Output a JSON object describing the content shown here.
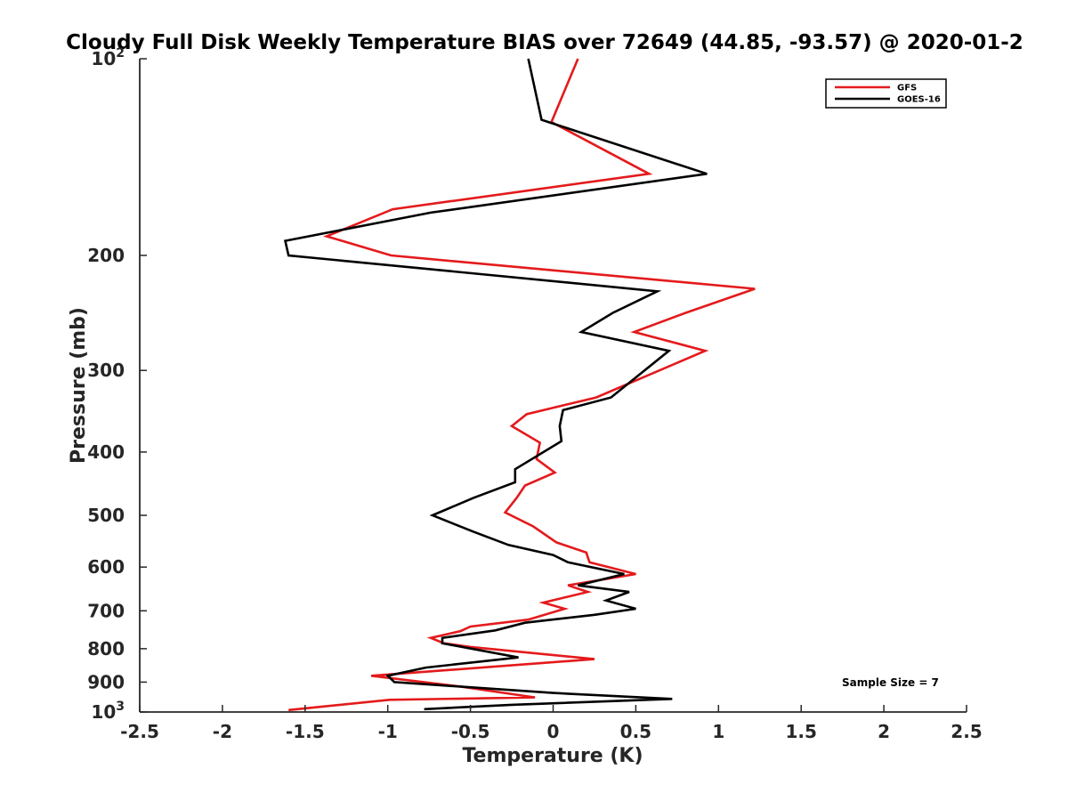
{
  "chart_data": {
    "type": "line",
    "title": "Cloudy Full Disk Weekly Temperature BIAS over 72649 (44.85, -93.57) @ 2020-01-2",
    "xlabel": "Temperature (K)",
    "ylabel": "Pressure (mb)",
    "xlim": [
      -2.5,
      2.5
    ],
    "ylim": [
      100,
      1000
    ],
    "y_scale": "log",
    "y_reversed": true,
    "x_ticks": [
      "-2.5",
      "-2",
      "-1.5",
      "-1",
      "-0.5",
      "0",
      "0.5",
      "1",
      "1.5",
      "2",
      "2.5"
    ],
    "y_ticks": [
      {
        "value": 100,
        "base": "10",
        "exp": "2"
      },
      {
        "value": 200,
        "label": "200"
      },
      {
        "value": 300,
        "label": "300"
      },
      {
        "value": 400,
        "label": "400"
      },
      {
        "value": 500,
        "label": "500"
      },
      {
        "value": 600,
        "label": "600"
      },
      {
        "value": 700,
        "label": "700"
      },
      {
        "value": 800,
        "label": "800"
      },
      {
        "value": 900,
        "label": "900"
      },
      {
        "value": 1000,
        "base": "10",
        "exp": "3"
      }
    ],
    "legend_position": "top-right",
    "annotation": "Sample Size = 7",
    "series": [
      {
        "name": "GFS",
        "color": "#e41a1c",
        "points": [
          [
            0.15,
            100
          ],
          [
            -0.01,
            125
          ],
          [
            0.58,
            150
          ],
          [
            -0.97,
            170
          ],
          [
            -1.37,
            187
          ],
          [
            -0.98,
            200
          ],
          [
            1.22,
            225
          ],
          [
            0.8,
            245
          ],
          [
            0.49,
            262
          ],
          [
            0.92,
            280
          ],
          [
            0.26,
            330
          ],
          [
            -0.16,
            350
          ],
          [
            -0.25,
            365
          ],
          [
            -0.08,
            387
          ],
          [
            -0.1,
            410
          ],
          [
            0.01,
            430
          ],
          [
            -0.17,
            450
          ],
          [
            -0.22,
            470
          ],
          [
            -0.29,
            495
          ],
          [
            -0.12,
            520
          ],
          [
            0.02,
            550
          ],
          [
            0.2,
            570
          ],
          [
            0.22,
            590
          ],
          [
            0.5,
            615
          ],
          [
            0.09,
            640
          ],
          [
            0.21,
            655
          ],
          [
            -0.06,
            680
          ],
          [
            0.07,
            695
          ],
          [
            -0.15,
            722
          ],
          [
            -0.5,
            740
          ],
          [
            -0.56,
            752
          ],
          [
            -0.74,
            770
          ],
          [
            -0.66,
            785
          ],
          [
            -0.5,
            795
          ],
          [
            0.25,
            830
          ],
          [
            -1.1,
            880
          ],
          [
            -0.55,
            915
          ],
          [
            -0.11,
            950
          ],
          [
            -0.99,
            958
          ],
          [
            -1.6,
            993
          ]
        ]
      },
      {
        "name": "GOES-16",
        "color": "#000000",
        "points": [
          [
            -0.15,
            100
          ],
          [
            -0.07,
            124
          ],
          [
            0.93,
            150
          ],
          [
            -0.74,
            172
          ],
          [
            -1.62,
            190
          ],
          [
            -1.6,
            200
          ],
          [
            0.63,
            227
          ],
          [
            0.36,
            245
          ],
          [
            0.17,
            262
          ],
          [
            0.7,
            280
          ],
          [
            0.35,
            330
          ],
          [
            0.06,
            345
          ],
          [
            0.04,
            365
          ],
          [
            0.05,
            385
          ],
          [
            -0.23,
            425
          ],
          [
            -0.23,
            435
          ],
          [
            -0.23,
            445
          ],
          [
            -0.48,
            470
          ],
          [
            -0.73,
            500
          ],
          [
            -0.48,
            530
          ],
          [
            -0.27,
            555
          ],
          [
            0.0,
            575
          ],
          [
            0.09,
            590
          ],
          [
            0.43,
            615
          ],
          [
            0.15,
            640
          ],
          [
            0.46,
            655
          ],
          [
            0.32,
            675
          ],
          [
            0.5,
            695
          ],
          [
            0.25,
            710
          ],
          [
            -0.17,
            730
          ],
          [
            -0.35,
            750
          ],
          [
            -0.67,
            770
          ],
          [
            -0.67,
            785
          ],
          [
            -0.21,
            825
          ],
          [
            -0.77,
            855
          ],
          [
            -1.0,
            880
          ],
          [
            -0.96,
            900
          ],
          [
            0.0,
            935
          ],
          [
            0.72,
            955
          ],
          [
            -0.25,
            975
          ],
          [
            -0.78,
            990
          ]
        ]
      }
    ]
  }
}
